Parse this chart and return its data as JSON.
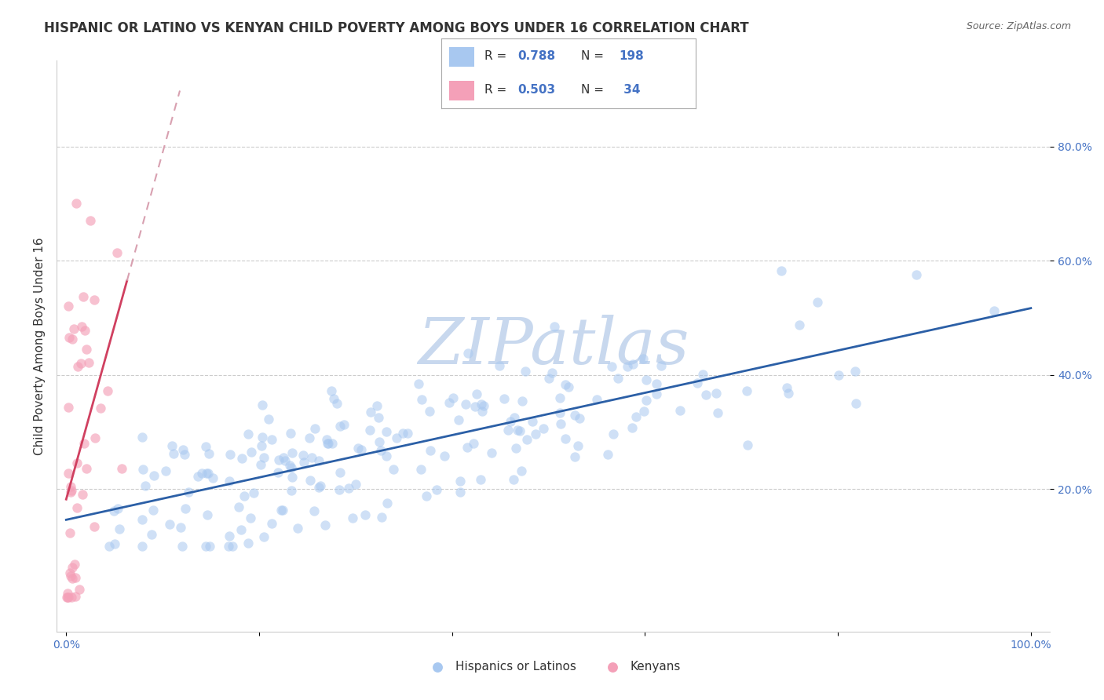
{
  "title": "HISPANIC OR LATINO VS KENYAN CHILD POVERTY AMONG BOYS UNDER 16 CORRELATION CHART",
  "source_text": "Source: ZipAtlas.com",
  "ylabel": "Child Poverty Among Boys Under 16",
  "watermark": "ZIPatlas",
  "blue_R": 0.788,
  "blue_N": 198,
  "pink_R": 0.503,
  "pink_N": 34,
  "blue_color": "#A8C8F0",
  "pink_color": "#F4A0B8",
  "blue_line_color": "#2B5FA6",
  "pink_line_color": "#D04060",
  "pink_dash_color": "#D8A0B0",
  "legend_label_blue": "Hispanics or Latinos",
  "legend_label_pink": "Kenyans",
  "y_tick_color": "#4472C4",
  "x_tick_color": "#4472C4",
  "grid_color": "#CCCCCC",
  "background_color": "#FFFFFF",
  "title_fontsize": 12,
  "axis_label_fontsize": 11,
  "tick_fontsize": 10,
  "watermark_fontsize": 60,
  "watermark_color": "#C8D8EE",
  "blue_seed": 42,
  "pink_seed": 99
}
